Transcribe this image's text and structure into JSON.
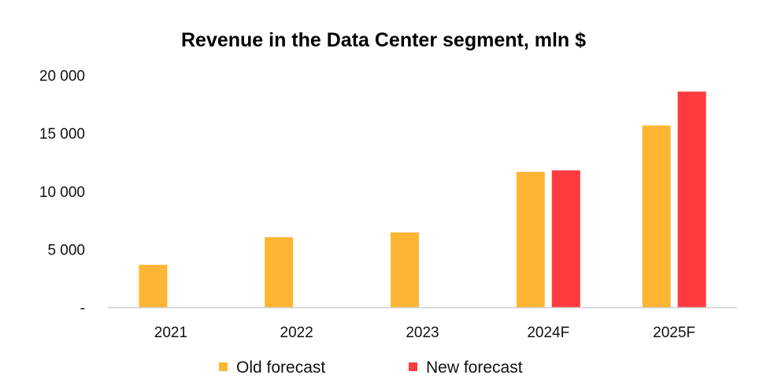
{
  "chart_data": {
    "type": "bar",
    "title": "Revenue in the Data Center segment, mln $",
    "xlabel": "",
    "ylabel": "",
    "ylim": [
      0,
      20000
    ],
    "yticks": [
      0,
      5000,
      10000,
      15000,
      20000
    ],
    "ytick_labels": [
      "-",
      "5 000",
      "10 000",
      "15 000",
      "20 000"
    ],
    "grid": false,
    "legend_position": "bottom",
    "categories": [
      "2021",
      "2022",
      "2023",
      "2024F",
      "2025F"
    ],
    "series": [
      {
        "name": "Old forecast",
        "color": "#FFB534",
        "values": [
          3660,
          6040,
          6450,
          11670,
          15670
        ]
      },
      {
        "name": "New forecast",
        "color": "#FF3B3F",
        "values": [
          null,
          null,
          null,
          11800,
          18590
        ]
      }
    ]
  }
}
